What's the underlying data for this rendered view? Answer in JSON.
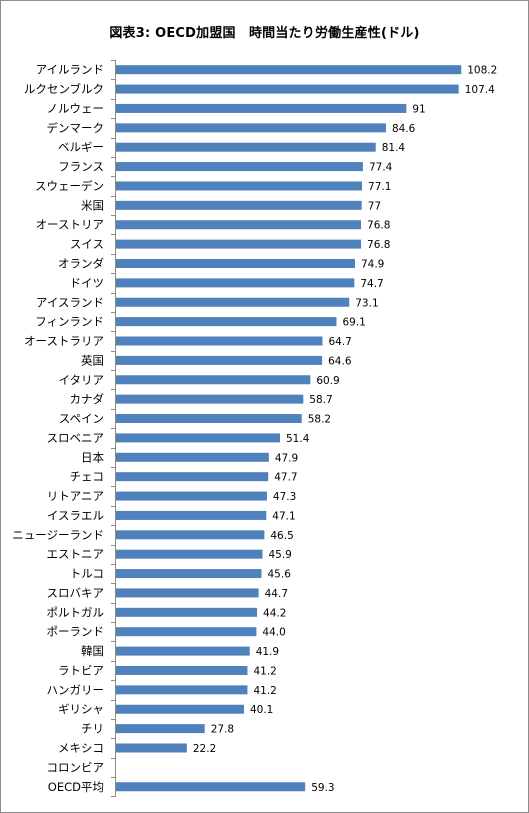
{
  "chart_data": {
    "type": "bar",
    "orientation": "horizontal",
    "title": "図表3: OECD加盟国　時間当たり労働生産性(ドル)",
    "bar_color": "#4f81bd",
    "categories": [
      "アイルランド",
      "ルクセンブルク",
      "ノルウェー",
      "デンマーク",
      "ベルギー",
      "フランス",
      "スウェーデン",
      "米国",
      "オーストリア",
      "スイス",
      "オランダ",
      "ドイツ",
      "アイスランド",
      "フィンランド",
      "オーストラリア",
      "英国",
      "イタリア",
      "カナダ",
      "スペイン",
      "スロベニア",
      "日本",
      "チェコ",
      "リトアニア",
      "イスラエル",
      "ニュージーランド",
      "エストニア",
      "トルコ",
      "スロバキア",
      "ポルトガル",
      "ポーランド",
      "韓国",
      "ラトビア",
      "ハンガリー",
      "ギリシャ",
      "チリ",
      "メキシコ",
      "コロンビア",
      "OECD平均"
    ],
    "values": [
      108.2,
      107.4,
      91,
      84.6,
      81.4,
      77.4,
      77.1,
      77,
      76.8,
      76.8,
      74.9,
      74.7,
      73.1,
      69.1,
      64.7,
      64.6,
      60.9,
      58.7,
      58.2,
      51.4,
      47.9,
      47.7,
      47.3,
      47.1,
      46.5,
      45.9,
      45.6,
      44.7,
      44.2,
      44.0,
      41.9,
      41.2,
      41.2,
      40.1,
      27.8,
      22.2,
      null,
      59.3
    ],
    "value_labels": [
      "108.2",
      "107.4",
      "91",
      "84.6",
      "81.4",
      "77.4",
      "77.1",
      "77",
      "76.8",
      "76.8",
      "74.9",
      "74.7",
      "73.1",
      "69.1",
      "64.7",
      "64.6",
      "60.9",
      "58.7",
      "58.2",
      "51.4",
      "47.9",
      "47.7",
      "47.3",
      "47.1",
      "46.5",
      "45.9",
      "45.6",
      "44.7",
      "44.2",
      "44.0",
      "41.9",
      "41.2",
      "41.2",
      "40.1",
      "27.8",
      "22.2",
      "",
      "59.3"
    ],
    "xlim": [
      0,
      110
    ],
    "grid": false,
    "legend": false
  }
}
